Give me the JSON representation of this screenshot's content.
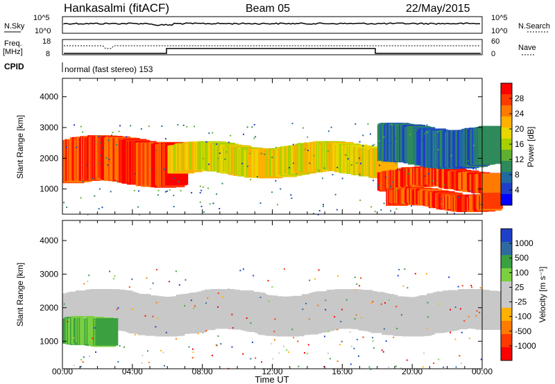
{
  "header": {
    "station": "Hankasalmi (fitACF)",
    "beam": "Beam 05",
    "date": "22/May/2015"
  },
  "status_panels": {
    "nsky_label": "N.Sky",
    "nsky_ticks": [
      "10^5",
      "10^0"
    ],
    "nsearch_label": "N.Search",
    "nsearch_ticks": [
      "10^5",
      "10^0"
    ],
    "freq_label_top": "Freq.",
    "freq_label_unit": "[MHz]",
    "freq_ticks": [
      "18",
      "8"
    ],
    "nave_label": "Nave",
    "nave_ticks": [
      "60",
      "0"
    ],
    "cpid_label": "CPID",
    "cpid_text": "normal (fast stereo) 153"
  },
  "chart_data": [
    {
      "type": "heatmap",
      "quantity": "Power",
      "xlabel": "Time UT",
      "ylabel": "Slant Range [km]",
      "y_ticks": [
        "1000",
        "2000",
        "3000",
        "4000"
      ],
      "ylim": [
        180,
        4600
      ],
      "x_ticks": [
        "00:00",
        "04:00",
        "08:00",
        "12:00",
        "16:00",
        "20:00",
        "00:00"
      ],
      "xlim_hours": [
        0,
        24
      ],
      "colorbar": {
        "label": "Power [dB]",
        "ticks": [
          "28",
          "24",
          "20",
          "16",
          "12",
          "8",
          "4"
        ],
        "colors": [
          "#ff0000",
          "#ff3a00",
          "#ff7a00",
          "#ffb000",
          "#e8d800",
          "#a8d000",
          "#5fb030",
          "#2e8a5a",
          "#1f6aa0",
          "#1e3fc8",
          "#0000ff"
        ]
      },
      "bands": [
        {
          "t_start": 0,
          "t_end": 6,
          "range_low": 1200,
          "range_high": 2600,
          "level": "high"
        },
        {
          "t_start": 6,
          "t_end": 18,
          "range_low": 1500,
          "range_high": 2400,
          "level": "medium"
        },
        {
          "t_start": 18,
          "t_end": 24,
          "range_low": 1000,
          "range_high": 1600,
          "level": "high"
        },
        {
          "t_start": 18.5,
          "t_end": 24,
          "range_low": 400,
          "range_high": 900,
          "level": "high"
        },
        {
          "t_start": 18,
          "t_end": 24,
          "range_low": 1800,
          "range_high": 3000,
          "level": "low"
        }
      ]
    },
    {
      "type": "heatmap",
      "quantity": "Velocity",
      "xlabel": "Time UT",
      "ylabel": "Slant Range [km]",
      "y_ticks": [
        "1000",
        "2000",
        "3000",
        "4000"
      ],
      "ylim": [
        180,
        4600
      ],
      "x_ticks": [
        "00:00",
        "04:00",
        "08:00",
        "12:00",
        "16:00",
        "20:00",
        "00:00"
      ],
      "xlim_hours": [
        0,
        24
      ],
      "colorbar": {
        "label": "Velocity [m s⁻¹]",
        "ticks": [
          "1000",
          "500",
          "100",
          "25",
          "-25",
          "-100",
          "-500",
          "-1000"
        ],
        "colors": [
          "#1e3fc8",
          "#2e6aa0",
          "#3aa040",
          "#7ad040",
          "#c8c8c8",
          "#c8c8c8",
          "#ffb000",
          "#ff7a00",
          "#ff3a00",
          "#ff0000"
        ]
      },
      "bands": [
        {
          "t_start": 0,
          "t_end": 24,
          "range_low": 1300,
          "range_high": 2400,
          "level": "ground"
        },
        {
          "t_start": 0,
          "t_end": 2,
          "range_low": 800,
          "range_high": 1600,
          "level": "green"
        }
      ]
    }
  ]
}
